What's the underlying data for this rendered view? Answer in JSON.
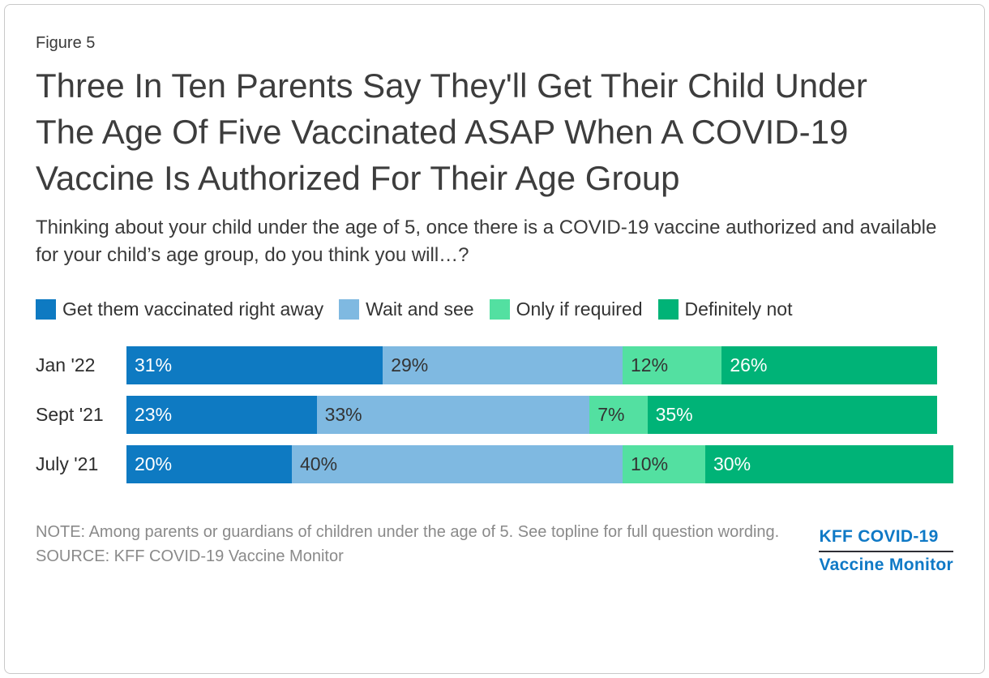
{
  "figure_label": "Figure 5",
  "title": "Three In Ten Parents Say They'll Get Their Child Under The Age Of Five Vaccinated ASAP When A COVID-19 Vaccine Is Authorized For Their Age Group",
  "subtitle": "Thinking about your child under the age of 5, once there is a COVID-19 vaccine authorized and available for your child’s age group, do you think you will…?",
  "note": "NOTE: Among parents or guardians of children under the age of 5. See topline for full question wording.",
  "source": "SOURCE: KFF COVID-19 Vaccine Monitor",
  "logo": {
    "line1": "KFF COVID-19",
    "line2": "Vaccine Monitor",
    "color": "#0F79C6"
  },
  "chart_data": {
    "type": "bar",
    "orientation": "horizontal_stacked",
    "title": "Three In Ten Parents Say They'll Get Their Child Under The Age Of Five Vaccinated ASAP When A COVID-19 Vaccine Is Authorized For Their Age Group",
    "value_suffix": "%",
    "xlim": [
      0,
      100
    ],
    "grid": false,
    "legend_position": "top",
    "categories": [
      "Jan '22",
      "Sept '21",
      "July '21"
    ],
    "series": [
      {
        "name": "Get them vaccinated right away",
        "color": "#0E7AC2",
        "label_color": "#FFFFFF",
        "values": [
          31,
          23,
          20
        ]
      },
      {
        "name": "Wait and see",
        "color": "#7FB9E1",
        "label_color": "#333333",
        "values": [
          29,
          33,
          40
        ]
      },
      {
        "name": "Only if required",
        "color": "#53E0A1",
        "label_color": "#333333",
        "values": [
          12,
          7,
          10
        ]
      },
      {
        "name": "Definitely not",
        "color": "#00B377",
        "label_color": "#FFFFFF",
        "values": [
          26,
          35,
          30
        ]
      }
    ]
  }
}
